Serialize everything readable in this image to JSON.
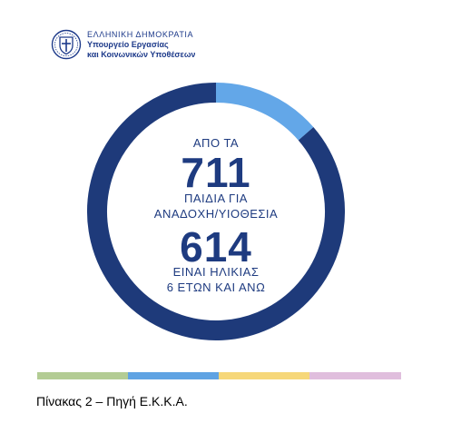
{
  "header": {
    "line1": "ΕΛΛΗΝΙΚΗ ΔΗΜΟΚΡΑΤΙΑ",
    "line2": "Υπουργείο Εργασίας",
    "line3": "και Κοινωνικών Υποθέσεων",
    "emblem_icon": "greek-coat-of-arms-icon"
  },
  "chart_data": {
    "type": "pie",
    "donut": true,
    "labels": [
      "ΑΠΟ ΤΑ",
      "ΠΑΙΔΙΑ ΓΙΑ",
      "ΑΝΑΔΟΧΗ/ΥΙΟΘΕΣΙΑ",
      "ΕΙΝΑΙ ΗΛΙΚΙΑΣ",
      "6 ΕΤΩΝ ΚΑΙ ΑΝΩ"
    ],
    "total": 711,
    "highlighted": 614,
    "total_label": "711",
    "highlighted_label": "614",
    "slices": [
      {
        "value": 614,
        "color": "#1e3a7a"
      },
      {
        "value": 97,
        "color": "#63a7e8"
      }
    ]
  },
  "footer_bar": [
    {
      "color": "#b3cc94"
    },
    {
      "color": "#5fa3e3"
    },
    {
      "color": "#f6d779"
    },
    {
      "color": "#e0bedd"
    }
  ],
  "caption": "Πίνακας 2 – Πηγή Ε.Κ.Κ.Α."
}
